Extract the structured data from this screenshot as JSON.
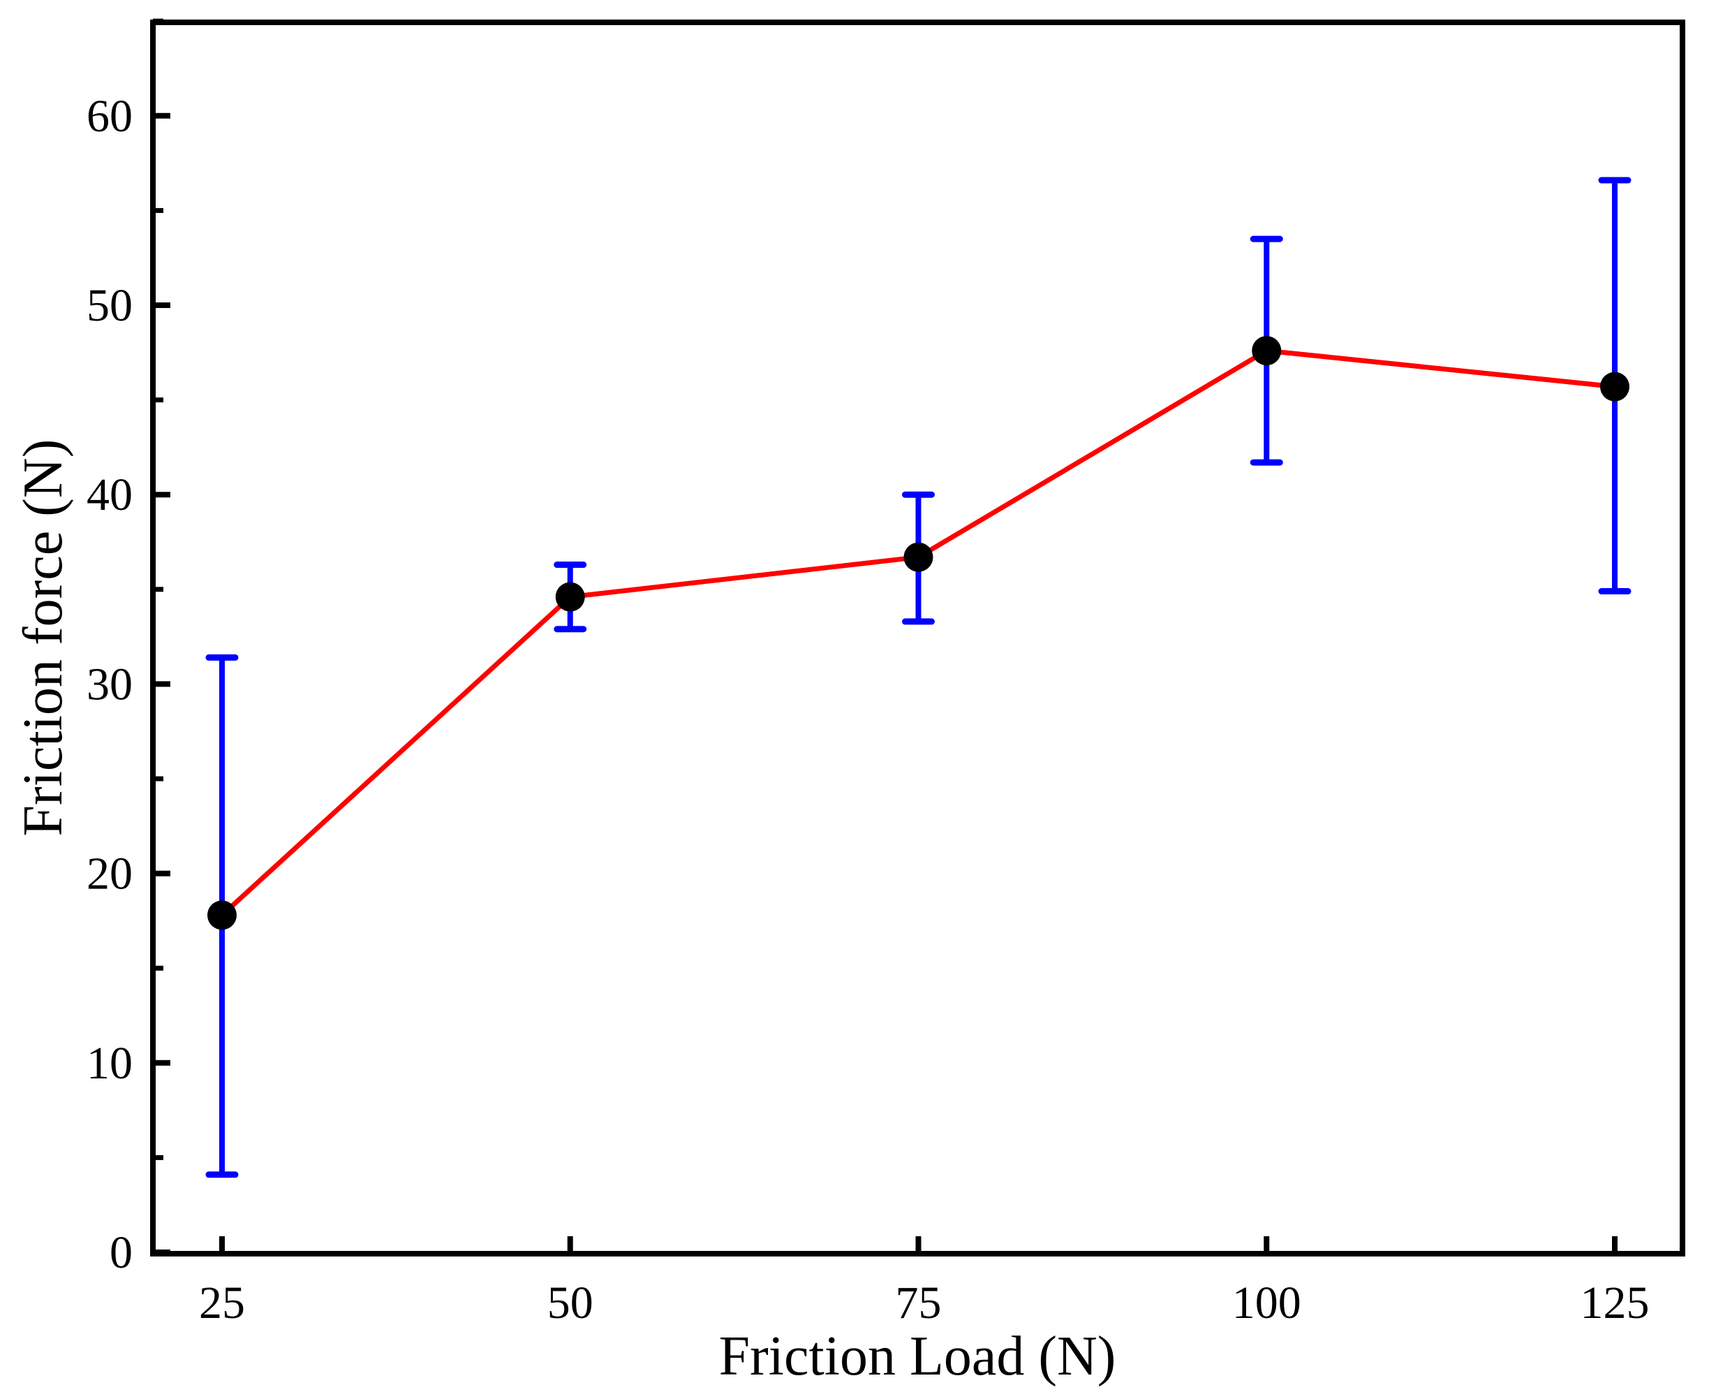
{
  "chart_data": {
    "type": "line",
    "title": "",
    "xlabel": "Friction Load (N)",
    "ylabel": "Friction force (N)",
    "x": [
      25,
      50,
      75,
      100,
      125
    ],
    "series": [
      {
        "name": "Friction force",
        "values": [
          17.8,
          34.6,
          36.7,
          47.6,
          45.7
        ],
        "error_low": [
          4.1,
          32.9,
          33.3,
          41.7,
          34.9
        ],
        "error_high": [
          31.4,
          36.3,
          40.0,
          53.5,
          56.6
        ],
        "line_color": "#ff0000",
        "marker_color": "#000000",
        "error_color": "#0000ff"
      }
    ],
    "xticks": [
      25,
      50,
      75,
      100,
      125
    ],
    "yticks": [
      0,
      10,
      20,
      30,
      40,
      50,
      60
    ],
    "ylim": [
      0,
      65
    ],
    "xlim": [
      20,
      130
    ],
    "grid": false,
    "legend": null
  },
  "labels": {
    "xlabel": "Friction Load (N)",
    "ylabel": "Friction force (N)",
    "xticks": [
      "25",
      "50",
      "75",
      "100",
      "125"
    ],
    "yticks": [
      "0",
      "10",
      "20",
      "30",
      "40",
      "50",
      "60"
    ]
  }
}
